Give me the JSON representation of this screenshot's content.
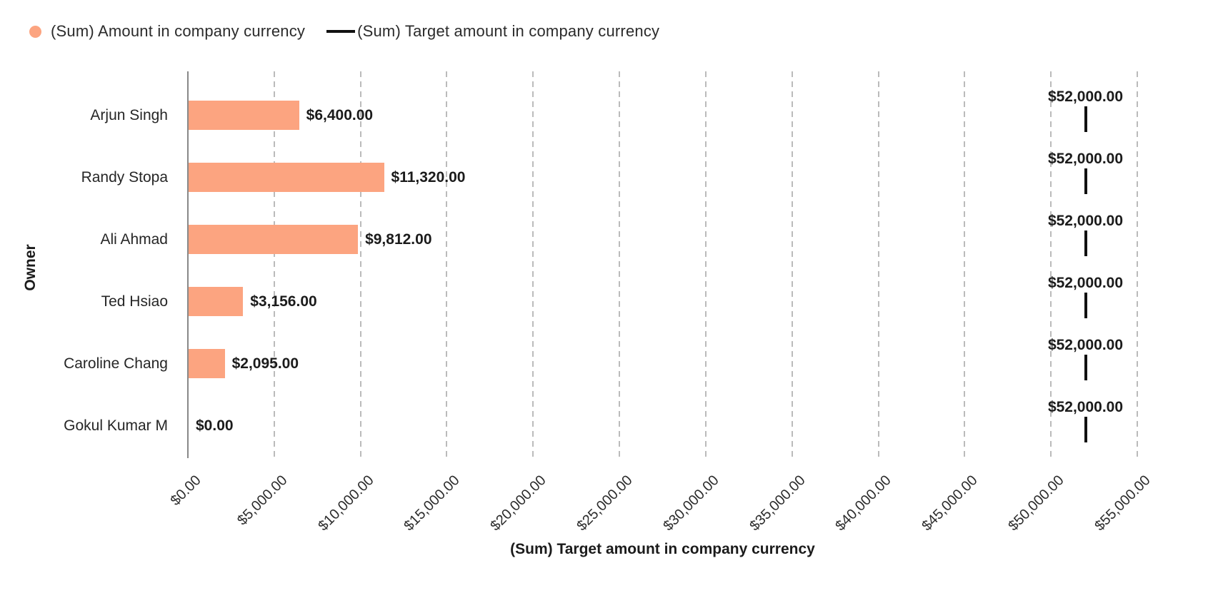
{
  "legend": {
    "items": [
      {
        "label": "(Sum) Amount in company currency",
        "marker": "dot",
        "color": "#FCA480"
      },
      {
        "label": "(Sum) Target amount in company currency",
        "marker": "line",
        "color": "#111111"
      }
    ]
  },
  "axes": {
    "x_title": "(Sum) Target amount in company currency",
    "y_title": "Owner"
  },
  "chart_data": {
    "type": "bar",
    "orientation": "horizontal",
    "categories": [
      "Arjun Singh",
      "Randy Stopa",
      "Ali Ahmad",
      "Ted Hsiao",
      "Caroline Chang",
      "Gokul Kumar M"
    ],
    "series": [
      {
        "name": "(Sum) Amount in company currency",
        "style": "bar",
        "color": "#FCA480",
        "values": [
          6400,
          11320,
          9812,
          3156,
          2095,
          0
        ],
        "value_labels": [
          "$6,400.00",
          "$11,320.00",
          "$9,812.00",
          "$3,156.00",
          "$2,095.00",
          "$0.00"
        ]
      },
      {
        "name": "(Sum) Target amount in company currency",
        "style": "tick-marker",
        "color": "#111111",
        "values": [
          52000,
          52000,
          52000,
          52000,
          52000,
          52000
        ],
        "value_labels": [
          "$52,000.00",
          "$52,000.00",
          "$52,000.00",
          "$52,000.00",
          "$52,000.00",
          "$52,000.00"
        ]
      }
    ],
    "xlabel": "(Sum) Target amount in company currency",
    "ylabel": "Owner",
    "xlim": [
      0,
      55000
    ],
    "x_ticks": [
      0,
      5000,
      10000,
      15000,
      20000,
      25000,
      30000,
      35000,
      40000,
      45000,
      50000,
      55000
    ],
    "x_tick_labels": [
      "$0.00",
      "$5,000.00",
      "$10,000.00",
      "$15,000.00",
      "$20,000.00",
      "$25,000.00",
      "$30,000.00",
      "$35,000.00",
      "$40,000.00",
      "$45,000.00",
      "$50,000.00",
      "$55,000.00"
    ],
    "grid": {
      "vertical": true,
      "line_style": "dashed"
    },
    "legend_position": "top-left"
  },
  "colors": {
    "bar": "#FCA480",
    "target_marker": "#111111",
    "gridline": "#BBBBBB",
    "axis_line": "#888888",
    "text": "#2B2B2B",
    "value_label": "#1B1B1B"
  }
}
